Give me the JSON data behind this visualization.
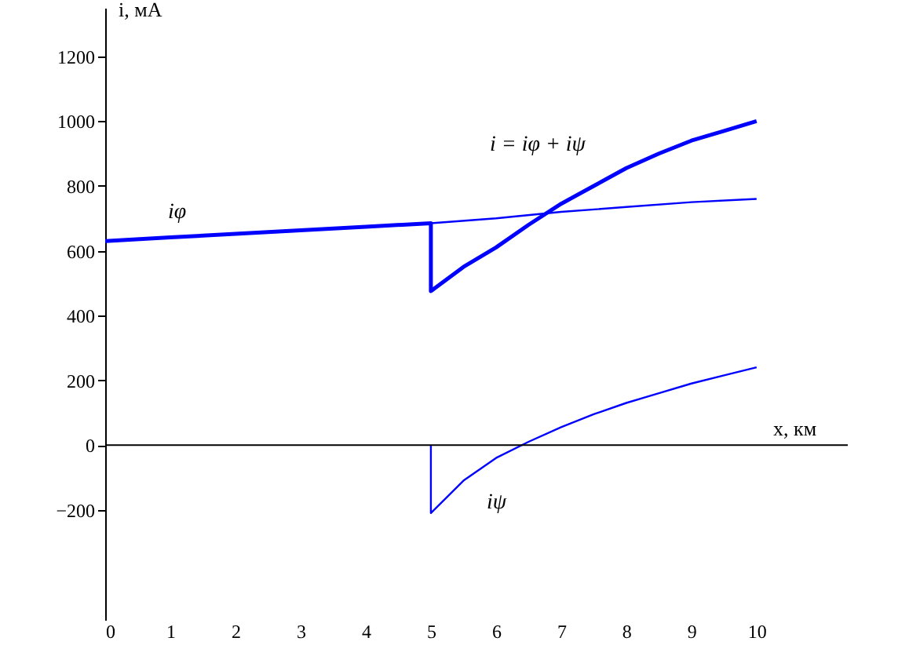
{
  "chart_data": {
    "type": "line",
    "xlabel": "x, км",
    "ylabel": "i, мА",
    "xlim": [
      0,
      11.4
    ],
    "ylim": [
      -540,
      1350
    ],
    "xticks": [
      0,
      1,
      2,
      3,
      4,
      5,
      6,
      7,
      8,
      9,
      10
    ],
    "yticks": [
      -200,
      0,
      200,
      400,
      600,
      800,
      1000,
      1200
    ],
    "grid": false,
    "marker": "none",
    "line_style": "solid",
    "ref_lines": [
      {
        "axis": "y",
        "value": 0,
        "color": "#000000"
      }
    ],
    "series": [
      {
        "color": "#0000ff",
        "x": [
          0,
          1,
          2,
          3,
          4,
          5,
          5,
          5.5,
          6,
          6.5,
          7,
          7.5,
          8,
          8.5,
          9,
          9.5,
          10
        ],
        "values": [
          630,
          641,
          652,
          663,
          674,
          685,
          475,
          550,
          610,
          680,
          745,
          800,
          855,
          900,
          940,
          970,
          1000
        ]
      },
      {
        "color": "#0000ff",
        "x": [
          0,
          2,
          4,
          5,
          6,
          7,
          8,
          9,
          10
        ],
        "values": [
          630,
          652,
          674,
          685,
          700,
          720,
          735,
          750,
          760
        ]
      },
      {
        "color": "#0000ff",
        "x": [
          5,
          5,
          5.5,
          6,
          6.5,
          7,
          7.5,
          8,
          8.5,
          9,
          9.5,
          10
        ],
        "values": [
          0,
          -210,
          -110,
          -40,
          10,
          55,
          95,
          130,
          160,
          190,
          215,
          240
        ]
      }
    ],
    "annotations": [
      "iφ",
      "i = iφ + iψ",
      "iψ"
    ]
  }
}
